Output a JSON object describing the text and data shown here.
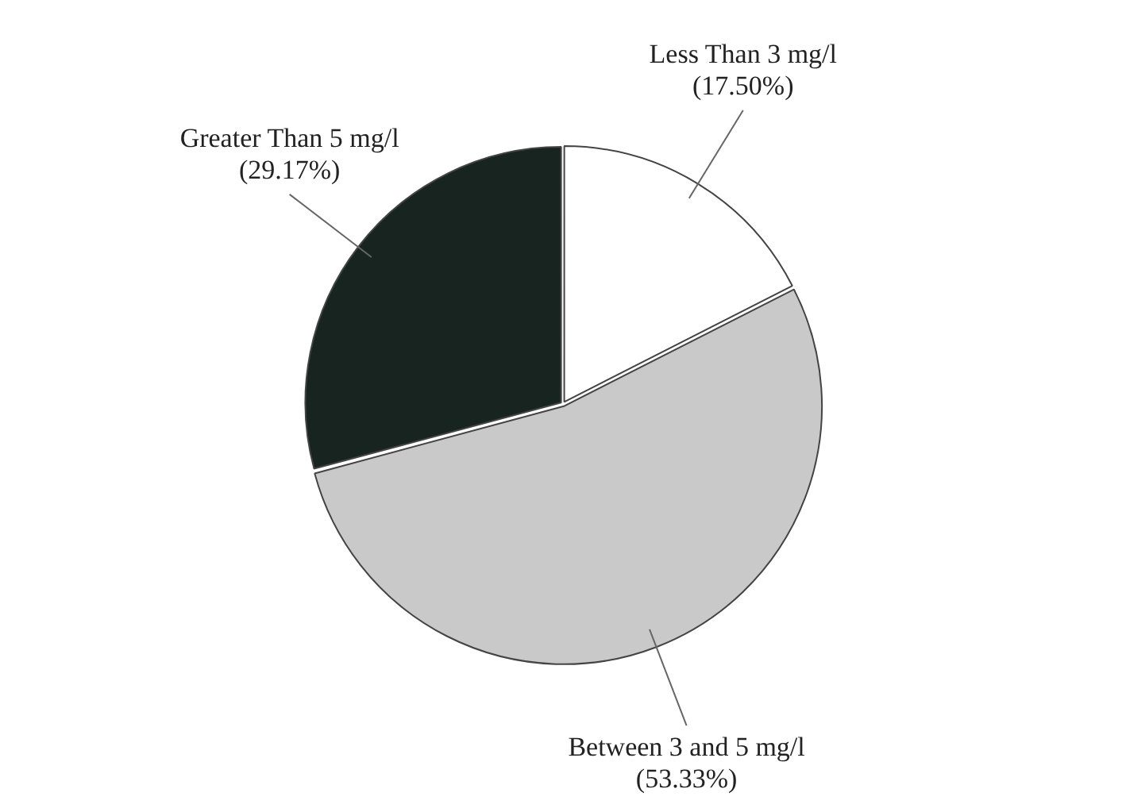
{
  "chart_data": {
    "type": "pie",
    "categories": [
      "Less Than 3 mg/l",
      "Between 3 and 5 mg/l",
      "Greater Than 5 mg/l"
    ],
    "values": [
      17.5,
      53.33,
      29.17
    ],
    "colors": [
      "#ffffff",
      "#c9c9c9",
      "#17241f"
    ],
    "value_labels": [
      "(17.50%)",
      "(53.33%)",
      "(29.17%)"
    ],
    "legend": false
  }
}
